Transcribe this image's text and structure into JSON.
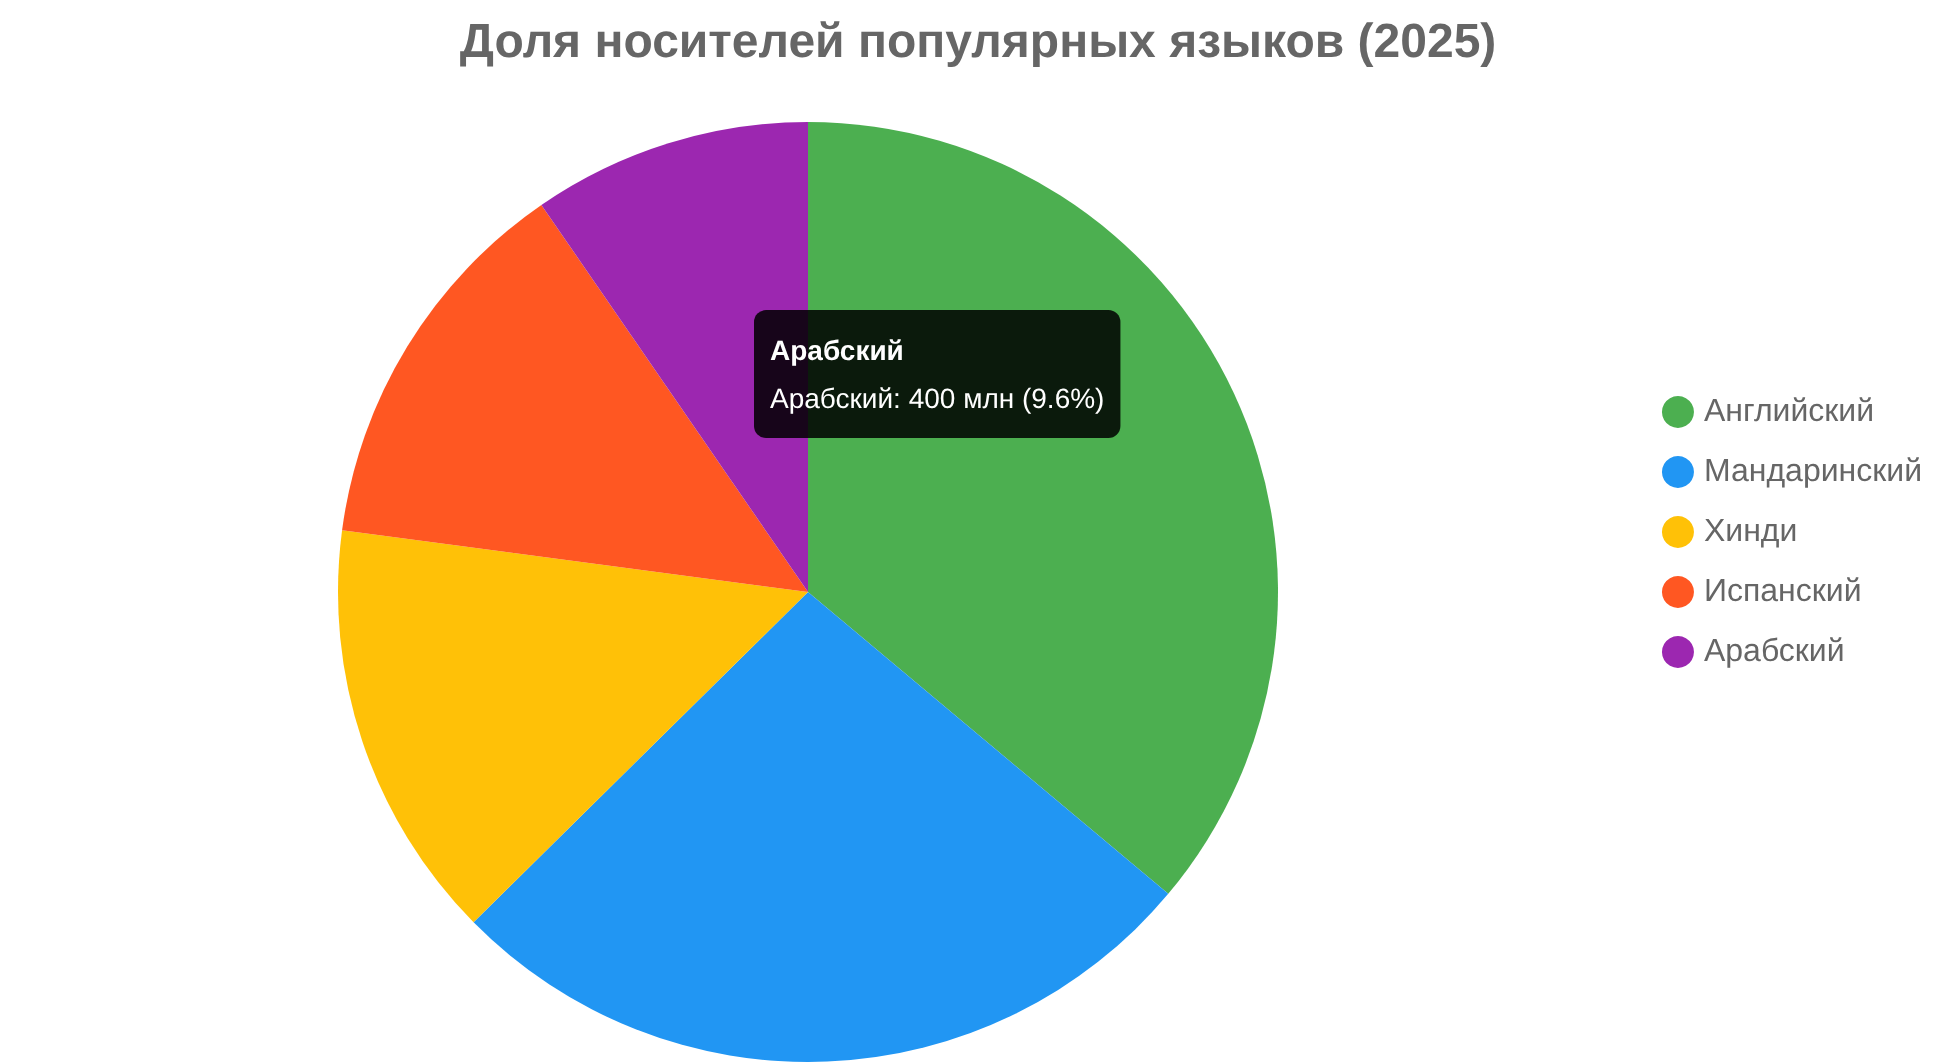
{
  "chart_data": {
    "type": "pie",
    "title": "Доля носителей популярных языков (2025)",
    "categories": [
      "Английский",
      "Мандаринский",
      "Хинди",
      "Испанский",
      "Арабский"
    ],
    "values": [
      36.1,
      26.5,
      14.5,
      13.3,
      9.6
    ],
    "colors": [
      "#4caf50",
      "#2196f3",
      "#ffc107",
      "#ff5722",
      "#9c27b0"
    ],
    "legend": "right",
    "annotations": [
      "Арабский",
      "Арабский: 400 млн (9.6%)"
    ]
  }
}
